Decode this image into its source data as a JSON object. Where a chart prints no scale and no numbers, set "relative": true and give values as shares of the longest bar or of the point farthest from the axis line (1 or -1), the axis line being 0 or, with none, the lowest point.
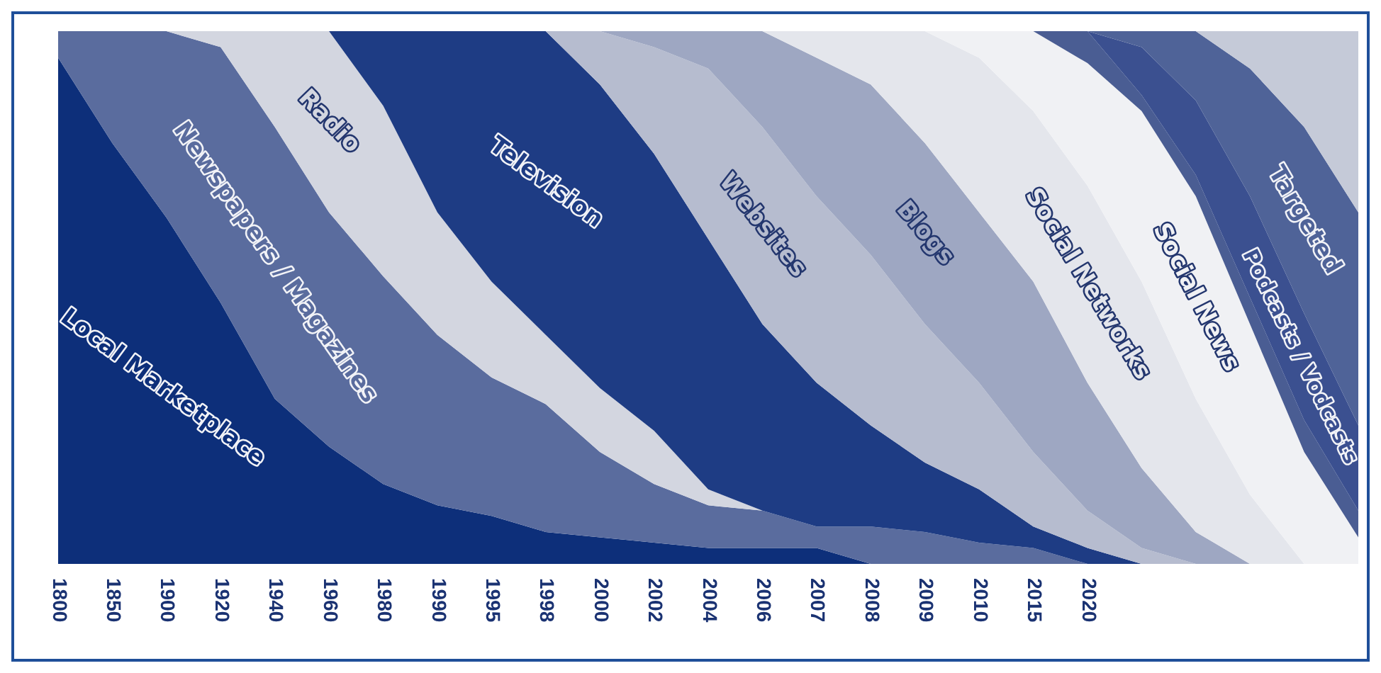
{
  "chart_data": {
    "type": "area",
    "stacked": true,
    "relative": true,
    "categories": [
      "1800",
      "1850",
      "1900",
      "1920",
      "1940",
      "1960",
      "1980",
      "1990",
      "1995",
      "1998",
      "2000",
      "2002",
      "2004",
      "2006",
      "2007",
      "2008",
      "2009",
      "2010",
      "2015",
      "2020",
      null,
      null,
      null,
      null,
      null
    ],
    "series": [
      {
        "name": "Local Marketplace",
        "color": "#0d2f7a",
        "values": [
          0.95,
          0.79,
          0.65,
          0.49,
          0.31,
          0.22,
          0.15,
          0.11,
          0.09,
          0.06,
          0.05,
          0.04,
          0.03,
          0.03,
          0.03,
          0,
          null,
          null,
          null,
          null,
          null,
          null,
          null,
          null,
          null
        ]
      },
      {
        "name": "Newspapers / Magazines",
        "color": "#5a6c9e",
        "values": [
          0.05,
          0.21,
          0.35,
          0.48,
          0.51,
          0.44,
          0.39,
          0.32,
          0.26,
          0.24,
          0.16,
          0.11,
          0.08,
          0.07,
          0.04,
          0.07,
          0.06,
          0.04,
          0.03,
          0,
          null,
          null,
          null,
          null,
          null
        ]
      },
      {
        "name": "Radio",
        "color": "#d3d6e0",
        "values": [
          null,
          null,
          0,
          0.03,
          0.18,
          0.34,
          0.32,
          0.23,
          0.18,
          0.13,
          0.12,
          0.1,
          0.03,
          0,
          null,
          null,
          null,
          null,
          null,
          null,
          null,
          null,
          null,
          null,
          null
        ]
      },
      {
        "name": "Television",
        "color": "#1e3c84",
        "values": [
          null,
          null,
          null,
          null,
          null,
          0,
          0.14,
          0.34,
          0.47,
          0.57,
          0.57,
          0.52,
          0.47,
          0.35,
          0.27,
          0.19,
          0.13,
          0.1,
          0.04,
          0.03,
          0,
          null,
          null,
          null,
          null
        ]
      },
      {
        "name": "Websites",
        "color": "#b6bccf",
        "values": [
          null,
          null,
          null,
          null,
          null,
          null,
          null,
          null,
          null,
          0,
          0.1,
          0.2,
          0.32,
          0.37,
          0.35,
          0.32,
          0.26,
          0.2,
          0.14,
          0.07,
          0.03,
          0,
          null,
          null,
          null
        ]
      },
      {
        "name": "Blogs",
        "color": "#9ea7c2",
        "values": [
          null,
          null,
          null,
          null,
          null,
          null,
          null,
          null,
          null,
          null,
          0,
          0.03,
          0.07,
          0.18,
          0.26,
          0.32,
          0.34,
          0.32,
          0.32,
          0.24,
          0.15,
          0.06,
          0,
          null,
          null
        ]
      },
      {
        "name": "Social Networks",
        "color": "#e4e6ec",
        "values": [
          null,
          null,
          null,
          null,
          null,
          null,
          null,
          null,
          null,
          null,
          null,
          null,
          null,
          0,
          0.05,
          0.1,
          0.21,
          0.29,
          0.32,
          0.37,
          0.35,
          0.25,
          0.13,
          0,
          null
        ]
      },
      {
        "name": "Social News",
        "color": "#f0f1f4",
        "values": [
          null,
          null,
          null,
          null,
          null,
          null,
          null,
          null,
          null,
          null,
          null,
          null,
          null,
          null,
          null,
          null,
          0,
          0.05,
          0.15,
          0.23,
          0.32,
          0.38,
          0.32,
          0.21,
          0.05
        ]
      },
      {
        "color": "#4a5d93",
        "values": [
          null,
          null,
          null,
          null,
          null,
          null,
          null,
          null,
          null,
          null,
          null,
          null,
          null,
          null,
          null,
          null,
          null,
          null,
          0,
          0.06,
          0.03,
          0.04,
          0.05,
          0.06,
          0.05
        ]
      },
      {
        "name": "Podcasts / Vodcasts",
        "color": "#3b5090",
        "values": [
          null,
          null,
          null,
          null,
          null,
          null,
          null,
          null,
          null,
          null,
          null,
          null,
          null,
          null,
          null,
          null,
          null,
          null,
          null,
          0,
          0.09,
          0.14,
          0.19,
          0.2,
          0.16
        ]
      },
      {
        "name": "Targeted",
        "color": "#4f6398",
        "values": [
          null,
          null,
          null,
          null,
          null,
          null,
          null,
          null,
          null,
          null,
          null,
          null,
          null,
          null,
          null,
          null,
          null,
          null,
          null,
          0,
          0.03,
          0.13,
          0.24,
          0.35,
          0.4
        ]
      },
      {
        "color": "#c5cad8",
        "values": [
          null,
          null,
          null,
          null,
          null,
          null,
          null,
          null,
          null,
          null,
          null,
          null,
          null,
          null,
          null,
          null,
          null,
          null,
          null,
          null,
          null,
          0,
          0.07,
          0.18,
          0.34
        ]
      }
    ]
  }
}
